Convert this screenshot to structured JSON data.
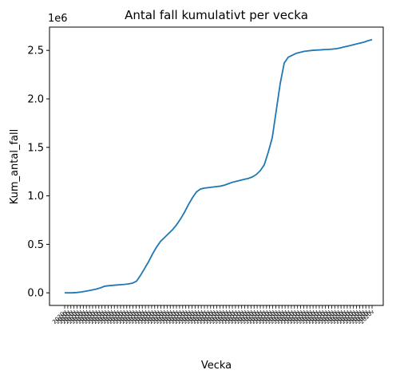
{
  "chart_data": {
    "type": "line",
    "title": "Antal fall kumulativt per vecka",
    "xlabel": "Vecka",
    "ylabel": "Kum_antal_fall",
    "y_offset_text": "1e6",
    "ylim": [
      -0.13,
      2.74
    ],
    "yticks": [
      0.0,
      0.5,
      1.0,
      1.5,
      2.0,
      2.5
    ],
    "ytick_labels": [
      "0.0",
      "0.5",
      "1.0",
      "1.5",
      "2.0",
      "2.5"
    ],
    "grid": false,
    "line_color": "#1f77b4",
    "x_tick_label": "2020v",
    "x_tick_count": 100,
    "series": [
      {
        "values": [
          0.0,
          0.0,
          0.0,
          0.003,
          0.008,
          0.015,
          0.022,
          0.03,
          0.04,
          0.052,
          0.068,
          0.073,
          0.077,
          0.08,
          0.084,
          0.087,
          0.092,
          0.1,
          0.12,
          0.18,
          0.25,
          0.32,
          0.4,
          0.47,
          0.53,
          0.57,
          0.61,
          0.65,
          0.7,
          0.76,
          0.83,
          0.91,
          0.98,
          1.04,
          1.07,
          1.08,
          1.085,
          1.09,
          1.095,
          1.1,
          1.11,
          1.125,
          1.14,
          1.15,
          1.16,
          1.17,
          1.18,
          1.195,
          1.22,
          1.26,
          1.32,
          1.45,
          1.6,
          1.88,
          2.16,
          2.37,
          2.43,
          2.45,
          2.47,
          2.48,
          2.49,
          2.495,
          2.5,
          2.503,
          2.505,
          2.508,
          2.51,
          2.513,
          2.517,
          2.525,
          2.535,
          2.545,
          2.555,
          2.565,
          2.575,
          2.585,
          2.6,
          2.61
        ]
      }
    ]
  }
}
